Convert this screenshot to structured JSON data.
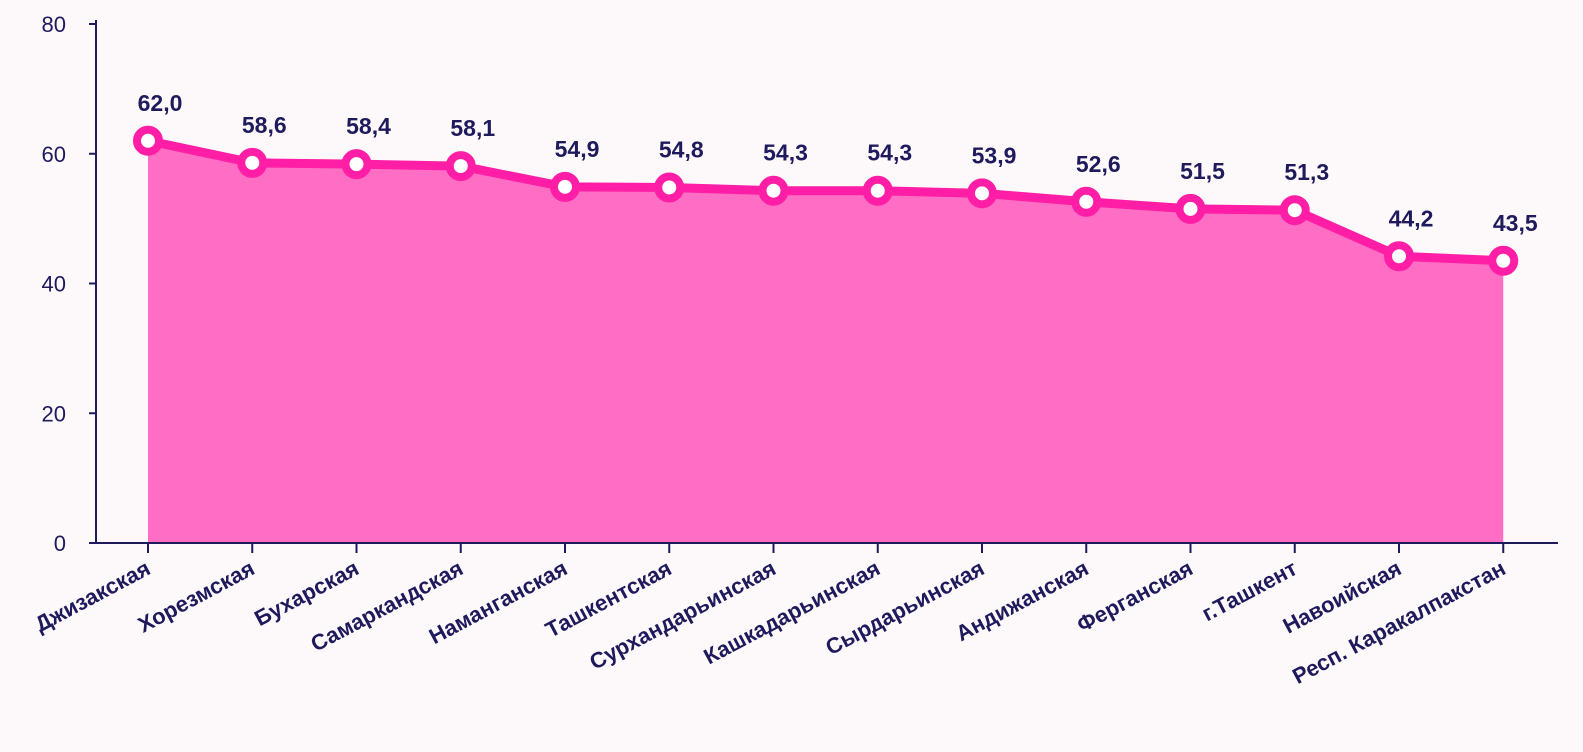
{
  "chart_data": {
    "type": "area",
    "title": "",
    "xlabel": "",
    "ylabel": "",
    "ylim": [
      0,
      80
    ],
    "yticks": [
      "0",
      "20",
      "40",
      "60",
      "80"
    ],
    "grid": false,
    "categories": [
      "Джизакская",
      "Хорезмская",
      "Бухарская",
      "Самаркандская",
      "Наманганская",
      "Ташкентская",
      "Сурхандарьинская",
      "Кашкадарьинская",
      "Сырдарьинская",
      "Андижанская",
      "Ферганская",
      "г.Ташкент",
      "Навоийская",
      "Респ. Каракалпакстан"
    ],
    "values": [
      62.0,
      58.6,
      58.4,
      58.1,
      54.9,
      54.8,
      54.3,
      54.3,
      53.9,
      52.6,
      51.5,
      51.3,
      44.2,
      43.5
    ],
    "value_labels": [
      "62,0",
      "58,6",
      "58,4",
      "58,1",
      "54,9",
      "54,8",
      "54,3",
      "54,3",
      "53,9",
      "52,6",
      "51,5",
      "51,3",
      "44,2",
      "43,5"
    ],
    "colors": {
      "area": "#ff6ec4",
      "line": "#ff1ea5",
      "marker_fill": "#ffffff",
      "axis": "#1f1a5c",
      "text": "#1f1a5c"
    }
  }
}
